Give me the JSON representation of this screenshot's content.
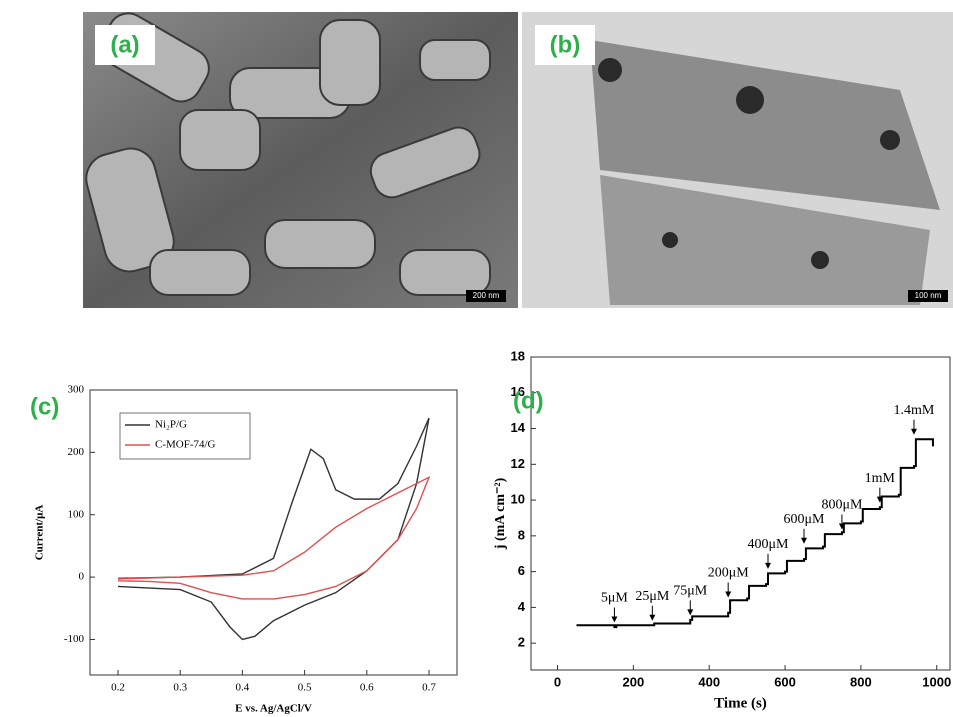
{
  "images": [
    {
      "label": "(a)",
      "scale_bar": "200 nm"
    },
    {
      "label": "(b)",
      "scale_bar": "100 nm"
    }
  ],
  "chart_data": [
    {
      "type": "line",
      "panel_label": "(c)",
      "xlabel": "E vs. Ag/AgCl/V",
      "ylabel": "Current/μA",
      "xlim": [
        0.155,
        0.745
      ],
      "ylim": [
        -157,
        300
      ],
      "xticks": [
        0.2,
        0.3,
        0.4,
        0.5,
        0.6,
        0.7
      ],
      "yticks": [
        -100,
        0,
        100,
        200,
        300
      ],
      "legend": "upper left",
      "series": [
        {
          "name": "Ni₂P/G",
          "color": "#333333",
          "x": [
            0.2,
            0.3,
            0.4,
            0.45,
            0.48,
            0.51,
            0.53,
            0.55,
            0.58,
            0.62,
            0.65,
            0.68,
            0.7,
            0.68,
            0.65,
            0.6,
            0.55,
            0.5,
            0.45,
            0.42,
            0.4,
            0.38,
            0.35,
            0.3,
            0.2
          ],
          "values": [
            -2,
            0,
            5,
            30,
            120,
            205,
            190,
            140,
            125,
            125,
            150,
            210,
            255,
            150,
            60,
            10,
            -25,
            -45,
            -70,
            -95,
            -100,
            -80,
            -40,
            -20,
            -15
          ]
        },
        {
          "name": "C-MOF-74/G",
          "color": "#e05050",
          "x": [
            0.2,
            0.3,
            0.4,
            0.45,
            0.5,
            0.55,
            0.6,
            0.65,
            0.7,
            0.68,
            0.65,
            0.6,
            0.55,
            0.5,
            0.45,
            0.4,
            0.35,
            0.3,
            0.25,
            0.2
          ],
          "values": [
            -3,
            0,
            3,
            10,
            40,
            80,
            110,
            135,
            160,
            110,
            60,
            10,
            -15,
            -28,
            -35,
            -35,
            -25,
            -10,
            -7,
            -6
          ]
        }
      ]
    },
    {
      "type": "step",
      "panel_label": "(d)",
      "xlabel": "Time (s)",
      "ylabel": "j (mA cm⁻²)",
      "xlim": [
        -70,
        1035
      ],
      "ylim": [
        0.5,
        18
      ],
      "xticks": [
        0,
        200,
        400,
        600,
        800,
        1000
      ],
      "yticks": [
        2,
        4,
        6,
        8,
        10,
        12,
        14,
        16,
        18
      ],
      "series": [
        {
          "color": "#000000",
          "x": [
            50,
            150,
            155,
            250,
            255,
            350,
            355,
            450,
            455,
            500,
            505,
            550,
            555,
            600,
            605,
            650,
            655,
            700,
            705,
            750,
            755,
            800,
            805,
            850,
            855,
            900,
            905,
            940,
            945,
            990
          ],
          "values": [
            3.0,
            2.9,
            3.0,
            3.0,
            3.1,
            3.3,
            3.5,
            3.7,
            4.4,
            4.5,
            5.2,
            5.3,
            5.9,
            6.0,
            6.6,
            6.7,
            7.3,
            7.4,
            8.1,
            8.2,
            8.7,
            8.8,
            9.5,
            9.6,
            10.2,
            10.3,
            11.8,
            11.9,
            13.4,
            13.0
          ]
        }
      ],
      "annotations": [
        {
          "text": "5μM",
          "x": 150,
          "y": 3.1
        },
        {
          "text": "25μM",
          "x": 250,
          "y": 3.2
        },
        {
          "text": "75μM",
          "x": 350,
          "y": 3.5
        },
        {
          "text": "200μM",
          "x": 450,
          "y": 4.5
        },
        {
          "text": "400μM",
          "x": 555,
          "y": 6.1
        },
        {
          "text": "600μM",
          "x": 650,
          "y": 7.5
        },
        {
          "text": "800μM",
          "x": 750,
          "y": 8.3
        },
        {
          "text": "1mM",
          "x": 850,
          "y": 9.8
        },
        {
          "text": "1.4mM",
          "x": 940,
          "y": 13.6
        }
      ]
    }
  ]
}
